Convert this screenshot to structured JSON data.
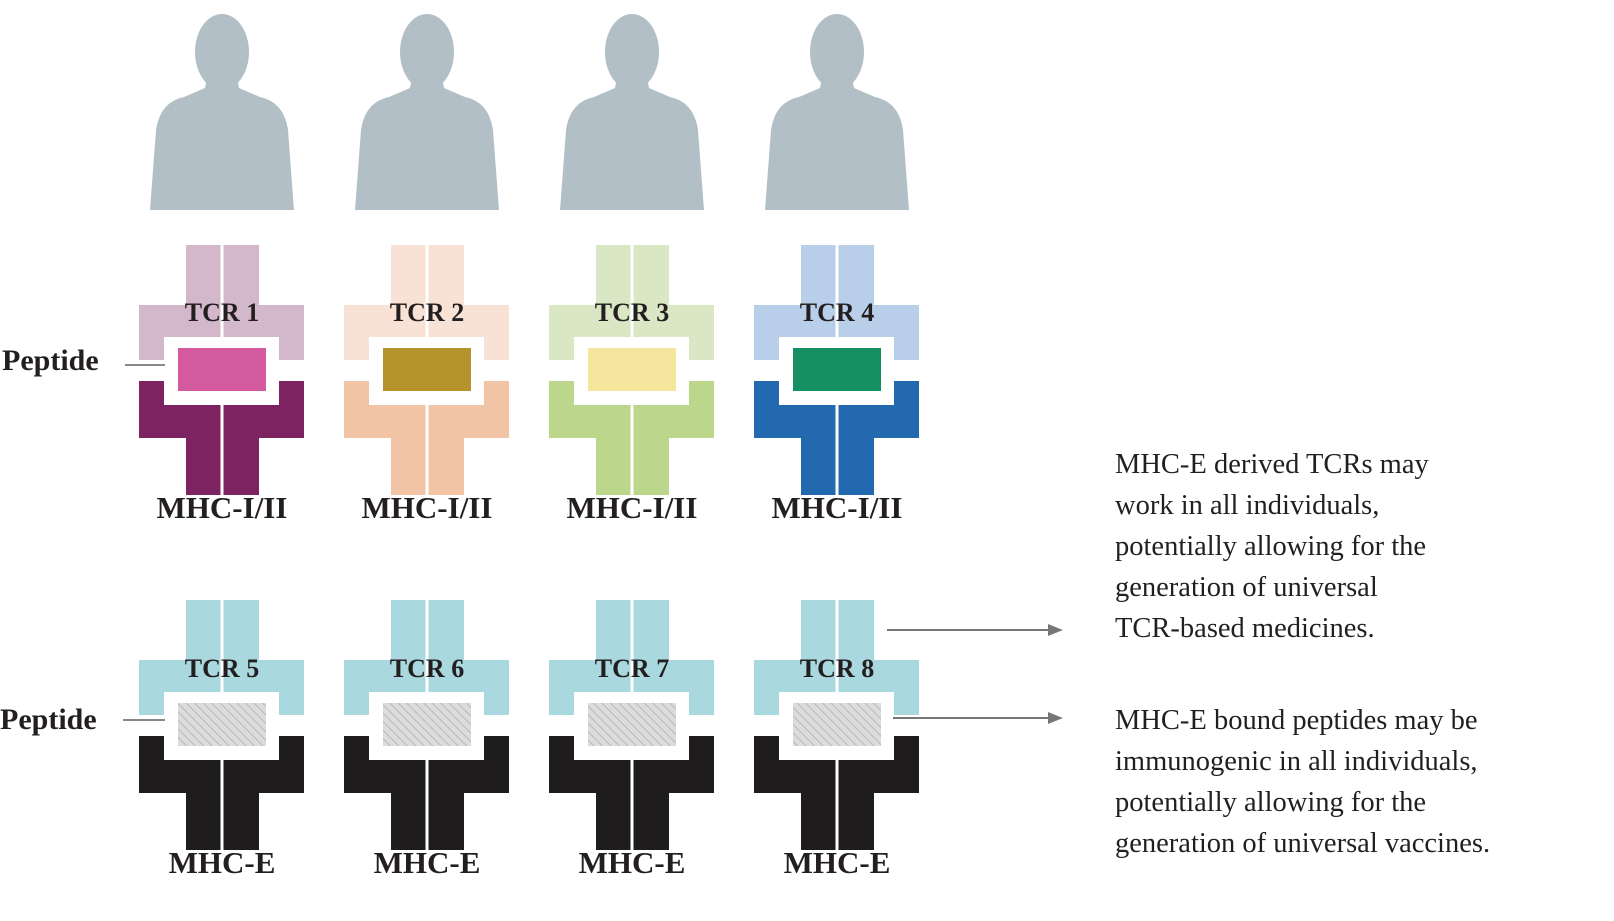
{
  "peptide_label": "Peptide",
  "individuals": 4,
  "colors": {
    "silhouette": "#b3bfc7",
    "mhc_e_tcr": "#a9d9df",
    "mhc_e": "#1e1c1d",
    "hatched_peptide": "#cfcfcf"
  },
  "top_row": [
    {
      "tcr": "TCR 1",
      "mhc": "MHC-I/II",
      "tcr_color": "#d3b8cb",
      "mhc_color": "#7e2362",
      "peptide_color": "#d35a9e"
    },
    {
      "tcr": "TCR 2",
      "mhc": "MHC-I/II",
      "tcr_color": "#f8e2d6",
      "mhc_color": "#f2c4a6",
      "peptide_color": "#b5942e"
    },
    {
      "tcr": "TCR 3",
      "mhc": "MHC-I/II",
      "tcr_color": "#d9e7c4",
      "mhc_color": "#bcd68c",
      "peptide_color": "#f6e59c"
    },
    {
      "tcr": "TCR 4",
      "mhc": "MHC-I/II",
      "tcr_color": "#b9cfe9",
      "mhc_color": "#2369b0",
      "peptide_color": "#169063"
    }
  ],
  "bottom_row": [
    {
      "tcr": "TCR 5",
      "mhc": "MHC-E"
    },
    {
      "tcr": "TCR 6",
      "mhc": "MHC-E"
    },
    {
      "tcr": "TCR 7",
      "mhc": "MHC-E"
    },
    {
      "tcr": "TCR 8",
      "mhc": "MHC-E"
    }
  ],
  "notes": {
    "tcr": [
      "MHC-E derived TCRs may",
      "work in all individuals,",
      "potentially allowing for the",
      "generation of universal",
      "TCR-based medicines."
    ],
    "peptide": [
      "MHC-E bound peptides may be",
      "immunogenic in all individuals,",
      "potentially allowing for the",
      "generation of universal vaccines."
    ]
  }
}
